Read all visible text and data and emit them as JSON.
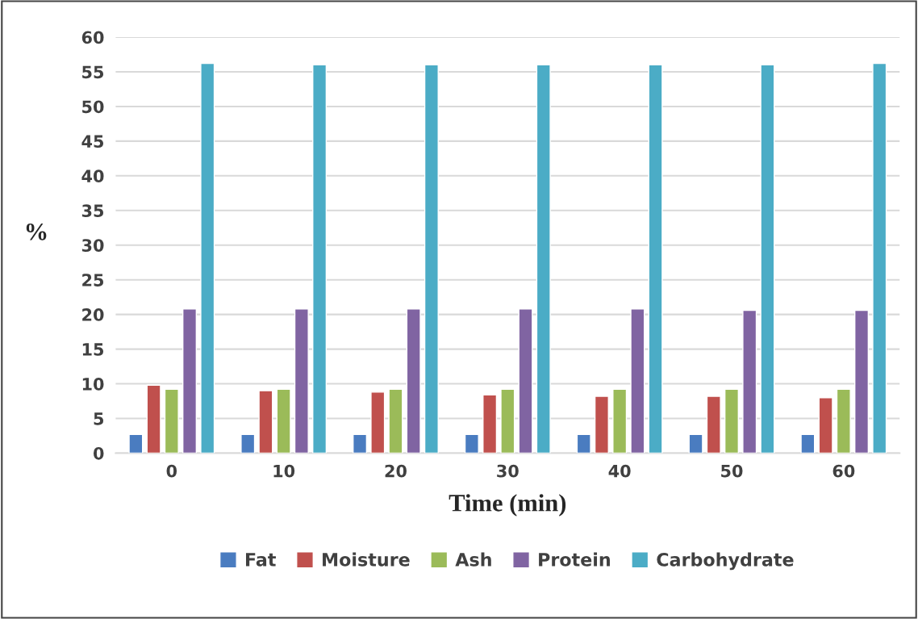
{
  "chart_data": {
    "type": "bar",
    "xlabel": "Time (min)",
    "ylabel": "%",
    "categories": [
      "0",
      "10",
      "20",
      "30",
      "40",
      "50",
      "60"
    ],
    "series": [
      {
        "name": "Fat",
        "color": "#4a7cc0",
        "values": [
          2.7,
          2.7,
          2.7,
          2.7,
          2.7,
          2.7,
          2.7
        ]
      },
      {
        "name": "Moisture",
        "color": "#c0504d",
        "values": [
          9.8,
          9.0,
          8.8,
          8.4,
          8.2,
          8.2,
          8.0
        ]
      },
      {
        "name": "Ash",
        "color": "#9bbb59",
        "values": [
          9.2,
          9.2,
          9.2,
          9.2,
          9.2,
          9.2,
          9.2
        ]
      },
      {
        "name": "Protein",
        "color": "#8064a2",
        "values": [
          20.8,
          20.8,
          20.8,
          20.8,
          20.8,
          20.6,
          20.6
        ]
      },
      {
        "name": "Carbohydrate",
        "color": "#4bacc6",
        "values": [
          56.2,
          56.0,
          56.0,
          56.0,
          56.0,
          56.0,
          56.2
        ]
      }
    ],
    "ylim": [
      0,
      60
    ],
    "yticks": [
      0,
      5,
      10,
      15,
      20,
      25,
      30,
      35,
      40,
      45,
      50,
      55,
      60
    ],
    "grid": "y",
    "legend": "bottom"
  }
}
